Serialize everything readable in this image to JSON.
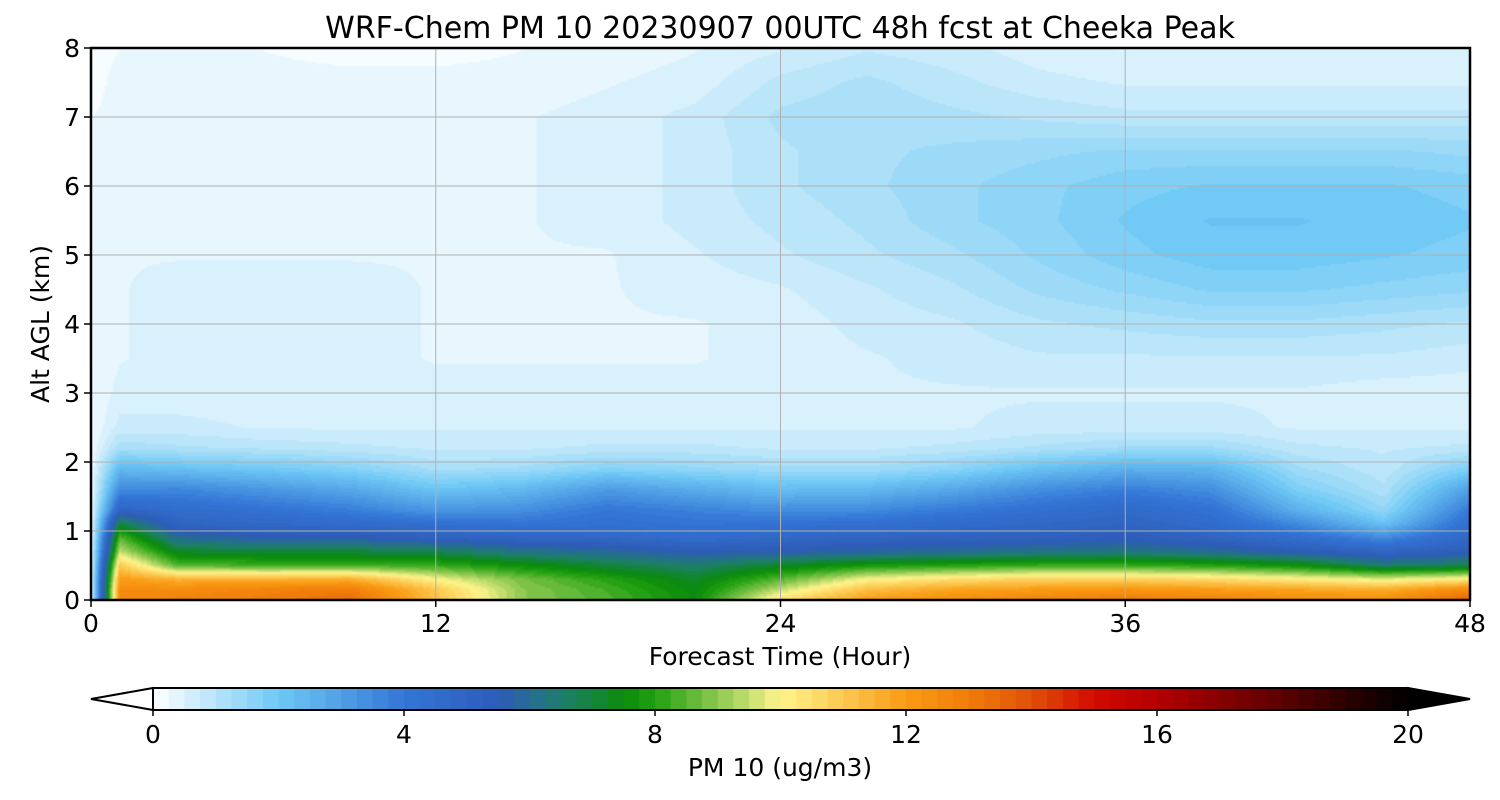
{
  "chart_data": {
    "type": "heatmap",
    "title": "WRF-Chem PM 10  20230907 00UTC 48h fcst at Cheeka Peak",
    "xlabel": "Forecast Time (Hour)",
    "ylabel": "Alt AGL (km)",
    "xlim": [
      0,
      48
    ],
    "ylim": [
      0,
      8
    ],
    "x_ticks": [
      0,
      12,
      24,
      36,
      48
    ],
    "y_ticks": [
      0,
      1,
      2,
      3,
      4,
      5,
      6,
      7,
      8
    ],
    "grid": true,
    "x_hours": [
      0,
      1,
      3,
      6,
      9,
      12,
      15,
      18,
      21,
      24,
      27,
      30,
      33,
      36,
      39,
      42,
      45,
      48
    ],
    "altitudes_km": [
      0,
      0.15,
      0.3,
      0.5,
      0.7,
      0.9,
      1.1,
      1.3,
      1.6,
      1.9,
      2.2,
      2.5,
      3,
      3.5,
      4,
      4.5,
      5,
      5.5,
      6,
      6.5,
      7,
      7.5,
      8
    ],
    "values_ug_m3": [
      [
        0.3,
        12.5,
        12.8,
        13.0,
        13.4,
        11.2,
        9.0,
        8.4,
        7.5,
        10.5,
        12.0,
        12.4,
        12.8,
        13.0,
        12.8,
        12.5,
        12.4,
        13.6
      ],
      [
        0.3,
        12.5,
        12.5,
        12.8,
        13.0,
        11.0,
        9.0,
        8.3,
        7.4,
        9.5,
        11.2,
        11.8,
        12.0,
        12.2,
        12.0,
        11.8,
        11.6,
        12.6
      ],
      [
        0.3,
        12.0,
        11.5,
        11.5,
        11.6,
        10.0,
        8.8,
        8.0,
        7.2,
        8.5,
        10.0,
        10.5,
        10.8,
        10.8,
        10.6,
        10.2,
        9.8,
        10.3
      ],
      [
        0.3,
        11.0,
        8.5,
        8.3,
        8.3,
        8.2,
        7.6,
        7.0,
        6.5,
        7.2,
        7.8,
        8.0,
        8.2,
        8.2,
        8.0,
        7.6,
        6.5,
        6.8
      ],
      [
        0.3,
        9.5,
        7.2,
        7.0,
        7.0,
        6.8,
        6.2,
        5.9,
        5.5,
        5.6,
        5.8,
        6.0,
        6.2,
        6.3,
        6.0,
        5.5,
        5.0,
        5.4
      ],
      [
        0.2,
        8.5,
        6.0,
        5.6,
        5.6,
        5.2,
        4.9,
        4.8,
        4.5,
        4.8,
        5.0,
        5.1,
        5.2,
        5.4,
        5.0,
        4.4,
        3.5,
        4.8
      ],
      [
        0.2,
        7.0,
        5.0,
        4.8,
        4.6,
        4.3,
        4.1,
        4.3,
        4.1,
        4.2,
        4.3,
        4.6,
        4.8,
        5.0,
        4.6,
        3.5,
        2.2,
        4.4
      ],
      [
        0.2,
        5.0,
        4.5,
        4.2,
        3.8,
        3.2,
        3.4,
        4.0,
        3.7,
        3.4,
        3.5,
        3.9,
        4.3,
        4.7,
        4.2,
        2.6,
        1.5,
        3.9
      ],
      [
        0.2,
        3.5,
        3.6,
        3.2,
        2.8,
        2.1,
        2.4,
        3.1,
        2.7,
        2.3,
        2.4,
        2.8,
        3.4,
        3.8,
        3.4,
        1.8,
        1.1,
        3.0
      ],
      [
        0.2,
        2.4,
        2.2,
        2.0,
        1.7,
        1.2,
        1.3,
        1.7,
        1.5,
        1.3,
        1.3,
        1.6,
        2.2,
        2.6,
        2.5,
        1.3,
        0.9,
        1.8
      ],
      [
        0.2,
        1.2,
        1.1,
        1.0,
        0.9,
        0.8,
        0.8,
        0.9,
        0.9,
        0.8,
        0.8,
        0.9,
        1.1,
        1.3,
        1.3,
        0.9,
        0.8,
        0.9
      ],
      [
        0.2,
        0.7,
        0.7,
        0.6,
        0.6,
        0.6,
        0.6,
        0.6,
        0.6,
        0.6,
        0.6,
        0.6,
        0.7,
        0.7,
        0.7,
        0.6,
        0.6,
        0.6
      ],
      [
        0.2,
        0.5,
        0.5,
        0.5,
        0.5,
        0.5,
        0.5,
        0.5,
        0.5,
        0.5,
        0.6,
        0.6,
        0.6,
        0.6,
        0.6,
        0.6,
        0.5,
        0.5
      ],
      [
        0.2,
        0.4,
        0.5,
        0.5,
        0.5,
        0.4,
        0.4,
        0.4,
        0.4,
        0.5,
        0.6,
        0.7,
        0.8,
        0.8,
        0.8,
        0.8,
        0.8,
        0.7
      ],
      [
        0.2,
        0.4,
        0.5,
        0.5,
        0.5,
        0.4,
        0.4,
        0.4,
        0.4,
        0.5,
        0.7,
        0.8,
        1.0,
        1.1,
        1.2,
        1.2,
        1.1,
        1.0
      ],
      [
        0.2,
        0.4,
        0.5,
        0.5,
        0.5,
        0.4,
        0.4,
        0.4,
        0.5,
        0.6,
        0.8,
        1.0,
        1.3,
        1.5,
        1.7,
        1.7,
        1.6,
        1.5
      ],
      [
        0.2,
        0.4,
        0.4,
        0.4,
        0.4,
        0.4,
        0.4,
        0.4,
        0.6,
        0.8,
        1.0,
        1.2,
        1.5,
        1.8,
        2.0,
        2.0,
        1.9,
        1.8
      ],
      [
        0.2,
        0.4,
        0.4,
        0.4,
        0.4,
        0.4,
        0.4,
        0.5,
        0.7,
        0.9,
        1.1,
        1.4,
        1.6,
        1.9,
        2.1,
        2.1,
        2.0,
        1.9
      ],
      [
        0.2,
        0.3,
        0.3,
        0.3,
        0.3,
        0.3,
        0.4,
        0.5,
        0.7,
        1.0,
        1.2,
        1.4,
        1.6,
        1.8,
        1.9,
        1.9,
        1.9,
        1.8
      ],
      [
        0.2,
        0.3,
        0.3,
        0.3,
        0.3,
        0.3,
        0.4,
        0.5,
        0.7,
        1.0,
        1.2,
        1.3,
        1.4,
        1.5,
        1.5,
        1.5,
        1.5,
        1.4
      ],
      [
        0.2,
        0.3,
        0.3,
        0.3,
        0.3,
        0.3,
        0.4,
        0.5,
        0.7,
        1.1,
        1.2,
        1.1,
        1.0,
        0.9,
        0.9,
        0.9,
        0.9,
        0.9
      ],
      [
        0.1,
        0.3,
        0.3,
        0.3,
        0.3,
        0.3,
        0.3,
        0.4,
        0.5,
        0.9,
        1.1,
        0.9,
        0.7,
        0.6,
        0.6,
        0.6,
        0.6,
        0.6
      ],
      [
        0.1,
        0.2,
        0.2,
        0.2,
        0.1,
        0.1,
        0.2,
        0.3,
        0.4,
        0.6,
        0.8,
        0.7,
        0.5,
        0.4,
        0.4,
        0.4,
        0.4,
        0.4
      ]
    ],
    "colorbar": {
      "label": "PM 10  (ug/m3)",
      "min": 0,
      "max": 20,
      "ticks": [
        0,
        4,
        8,
        12,
        16,
        20
      ],
      "extend": "both",
      "under_color": "#ffffff",
      "over_color": "#000000",
      "colormap": [
        {
          "value": 0,
          "color": "#ffffff"
        },
        {
          "value": 2,
          "color": "#6ec9f5"
        },
        {
          "value": 4,
          "color": "#3375d6"
        },
        {
          "value": 5.5,
          "color": "#2e5cb8"
        },
        {
          "value": 6.5,
          "color": "#1e7d6e"
        },
        {
          "value": 7.5,
          "color": "#0a8c0a"
        },
        {
          "value": 8,
          "color": "#23a012"
        },
        {
          "value": 9,
          "color": "#8cc850"
        },
        {
          "value": 10,
          "color": "#fff58c"
        },
        {
          "value": 11,
          "color": "#fcc850"
        },
        {
          "value": 12,
          "color": "#fa9b14"
        },
        {
          "value": 13,
          "color": "#f07d0a"
        },
        {
          "value": 14,
          "color": "#e1500a"
        },
        {
          "value": 15,
          "color": "#d20a00"
        },
        {
          "value": 16,
          "color": "#b40000"
        },
        {
          "value": 18,
          "color": "#5a0000"
        },
        {
          "value": 20,
          "color": "#000000"
        }
      ]
    }
  }
}
